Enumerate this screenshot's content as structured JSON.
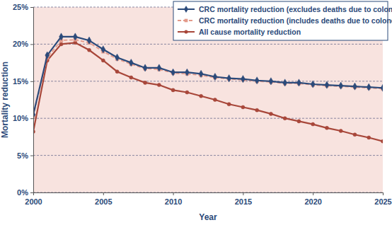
{
  "chart_data": {
    "type": "line",
    "x_label": "Year",
    "y_label": "Mortality reduction",
    "x": [
      2000,
      2001,
      2002,
      2003,
      2004,
      2005,
      2006,
      2007,
      2008,
      2009,
      2010,
      2011,
      2012,
      2013,
      2014,
      2015,
      2016,
      2017,
      2018,
      2019,
      2020,
      2021,
      2022,
      2023,
      2024,
      2025
    ],
    "series": [
      {
        "name": "CRC mortality reduction (excludes deaths due to colonoscopy)",
        "color": "#2b4a7a",
        "marker": "diamond",
        "line_style": "solid",
        "values": [
          10.5,
          18.5,
          21,
          21,
          20.5,
          19.3,
          18.2,
          17.5,
          16.8,
          16.8,
          16.2,
          16.2,
          16,
          15.6,
          15.4,
          15.3,
          15.1,
          15,
          14.8,
          14.8,
          14.6,
          14.5,
          14.4,
          14.3,
          14.2,
          14.1
        ]
      },
      {
        "name": "CRC mortality reduction (includes deaths due to colonoscopy)",
        "color": "#e39a8a",
        "marker": "square",
        "line_style": "dashed",
        "values": [
          10.3,
          18.2,
          20.5,
          20.6,
          20.2,
          19,
          18,
          17.3,
          16.7,
          16.6,
          16.1,
          16,
          15.8,
          15.5,
          15.3,
          15.2,
          15,
          14.9,
          14.7,
          14.7,
          14.5,
          14.4,
          14.3,
          14.2,
          14.1,
          14
        ]
      },
      {
        "name": "All cause mortality reduction",
        "color": "#a8473a",
        "marker": "circle",
        "line_style": "solid",
        "values": [
          8.2,
          17.8,
          20,
          20.2,
          19.2,
          17.8,
          16.3,
          15.5,
          14.8,
          14.5,
          13.8,
          13.5,
          13,
          12.5,
          11.9,
          11.5,
          11.1,
          10.6,
          10,
          9.6,
          9.2,
          8.7,
          8.3,
          7.8,
          7.4,
          6.9
        ]
      }
    ],
    "xlim": [
      2000,
      2025
    ],
    "xticks": [
      2000,
      2005,
      2010,
      2015,
      2020,
      2025
    ],
    "ylim": [
      0,
      25
    ],
    "yticks": [
      {
        "value": 0,
        "label": "0%"
      },
      {
        "value": 5,
        "label": "5%"
      },
      {
        "value": 10,
        "label": "10%"
      },
      {
        "value": 15,
        "label": "15%"
      },
      {
        "value": 20,
        "label": "20%"
      },
      {
        "value": 25,
        "label": "25%"
      }
    ],
    "grid": true,
    "legend": "top-right"
  }
}
